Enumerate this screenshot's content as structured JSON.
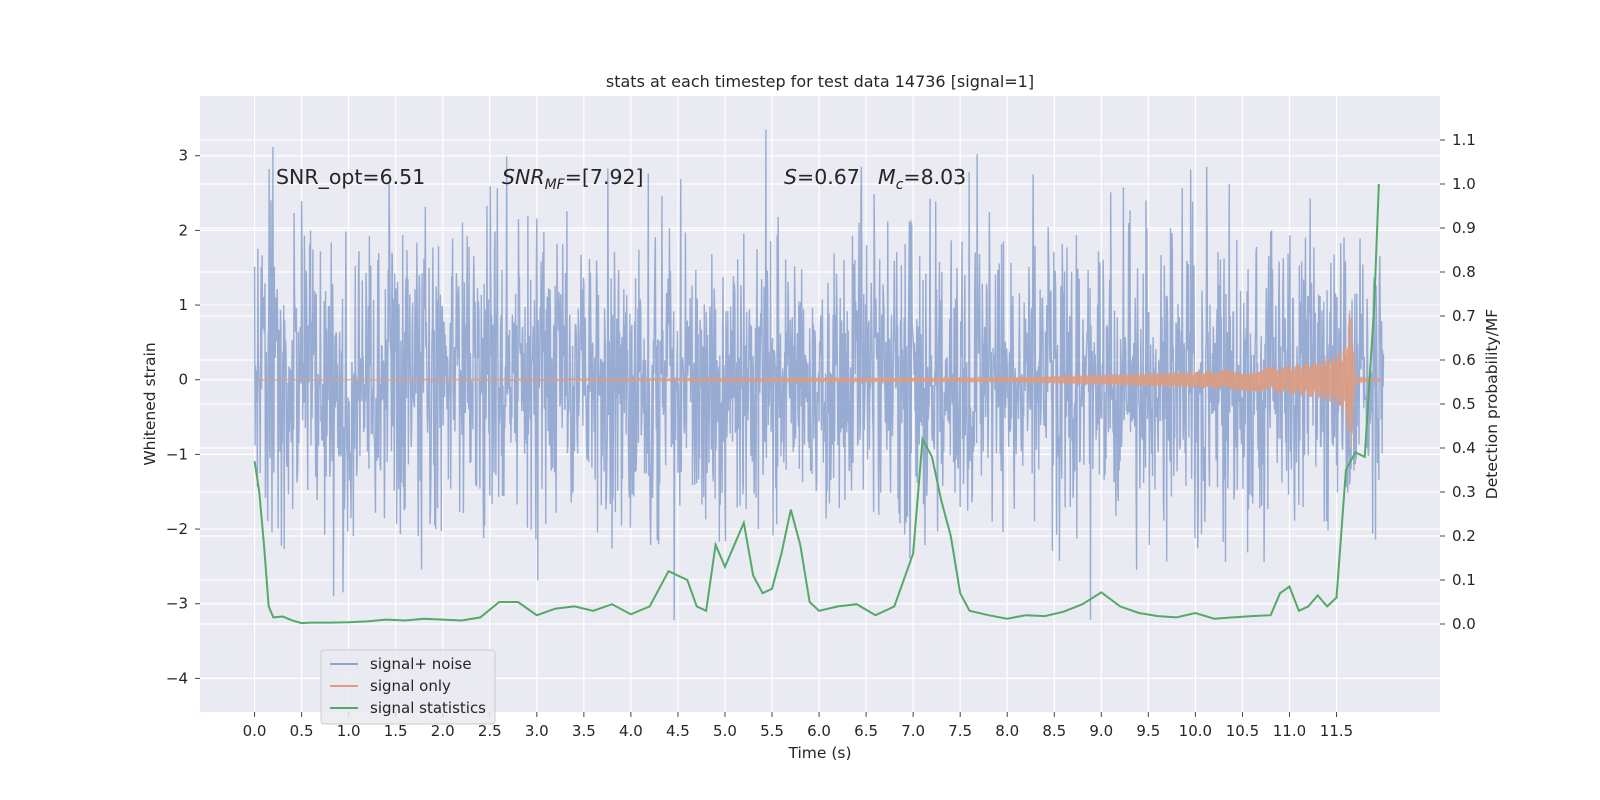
{
  "chart_data": {
    "type": "line",
    "title": "stats at each timestep for test data 14736 [signal=1]",
    "xlabel": "Time (s)",
    "ylabel": "Whitened strain",
    "ylabel_right": "Detection probability/MF",
    "xlim": [
      -0.58,
      12.6
    ],
    "ylim": [
      -4.45,
      3.8
    ],
    "ylim_right": [
      -0.2,
      1.2
    ],
    "x_ticks": [
      "0.0",
      "0.5",
      "1.0",
      "1.5",
      "2.0",
      "2.5",
      "3.0",
      "3.5",
      "4.0",
      "4.5",
      "5.0",
      "5.5",
      "6.0",
      "6.5",
      "7.0",
      "7.5",
      "8.0",
      "8.5",
      "9.0",
      "9.5",
      "10.0",
      "10.5",
      "11.0",
      "11.5"
    ],
    "y_ticks": [
      "3",
      "2",
      "1",
      "0",
      "−1",
      "−2",
      "−3",
      "−4"
    ],
    "y_right_ticks": [
      "1.1",
      "1.0",
      "0.9",
      "0.8",
      "0.7",
      "0.6",
      "0.5",
      "0.4",
      "0.3",
      "0.2",
      "0.1",
      "0.0"
    ],
    "grid": true,
    "legend_placement": "lower-left",
    "annotations": {
      "snr_opt": "SNR_opt=6.51",
      "snr_mf_sym": "SNR",
      "snr_mf_sub": "MF",
      "snr_mf_val": "=[7.92]",
      "s_sym": "S",
      "s_val": "=0.67",
      "mc_sym": "M",
      "mc_sub": "c",
      "mc_val": "=8.03"
    },
    "series": [
      {
        "name": "signal+ noise",
        "color": "#8fa5cf",
        "axis": "left",
        "description_only": true
      },
      {
        "name": "signal only",
        "color": "#dd9b80",
        "axis": "left",
        "x": [
          0.0,
          8.0,
          9.0,
          10.0,
          10.5,
          11.0,
          11.3,
          11.5,
          11.6,
          11.65,
          11.7,
          12.0
        ],
        "envelope": [
          0.0,
          0.03,
          0.07,
          0.11,
          0.14,
          0.19,
          0.25,
          0.33,
          0.47,
          1.05,
          0.05,
          0.0
        ]
      },
      {
        "name": "signal statistics",
        "color": "#55a868",
        "axis": "right",
        "x": [
          0.0,
          0.05,
          0.1,
          0.15,
          0.2,
          0.3,
          0.4,
          0.5,
          0.6,
          0.8,
          1.0,
          1.2,
          1.4,
          1.6,
          1.8,
          2.0,
          2.2,
          2.4,
          2.6,
          2.8,
          3.0,
          3.2,
          3.4,
          3.6,
          3.8,
          4.0,
          4.2,
          4.4,
          4.6,
          4.7,
          4.8,
          4.9,
          5.0,
          5.1,
          5.2,
          5.3,
          5.4,
          5.5,
          5.6,
          5.7,
          5.8,
          5.9,
          6.0,
          6.2,
          6.4,
          6.6,
          6.8,
          7.0,
          7.1,
          7.2,
          7.3,
          7.4,
          7.5,
          7.6,
          7.8,
          8.0,
          8.2,
          8.4,
          8.6,
          8.8,
          9.0,
          9.2,
          9.4,
          9.6,
          9.8,
          10.0,
          10.2,
          10.4,
          10.6,
          10.8,
          10.9,
          11.0,
          11.1,
          11.2,
          11.3,
          11.4,
          11.5,
          11.6,
          11.7,
          11.8,
          11.9,
          11.95
        ],
        "values": [
          0.37,
          0.3,
          0.18,
          0.04,
          0.015,
          0.017,
          0.008,
          0.002,
          0.003,
          0.003,
          0.004,
          0.006,
          0.01,
          0.008,
          0.012,
          0.01,
          0.008,
          0.015,
          0.05,
          0.05,
          0.02,
          0.035,
          0.04,
          0.03,
          0.045,
          0.022,
          0.04,
          0.12,
          0.1,
          0.04,
          0.03,
          0.18,
          0.13,
          0.18,
          0.23,
          0.11,
          0.07,
          0.08,
          0.16,
          0.26,
          0.18,
          0.05,
          0.03,
          0.04,
          0.045,
          0.02,
          0.04,
          0.16,
          0.42,
          0.38,
          0.28,
          0.2,
          0.07,
          0.03,
          0.02,
          0.012,
          0.02,
          0.018,
          0.028,
          0.045,
          0.072,
          0.04,
          0.025,
          0.018,
          0.015,
          0.025,
          0.012,
          0.015,
          0.018,
          0.02,
          0.07,
          0.085,
          0.03,
          0.04,
          0.065,
          0.04,
          0.06,
          0.35,
          0.39,
          0.38,
          0.72,
          1.0
        ]
      }
    ]
  },
  "legend": {
    "items": [
      {
        "label": "signal+ noise",
        "color": "#8fa5cf"
      },
      {
        "label": "signal only",
        "color": "#dd9b80"
      },
      {
        "label": "signal statistics",
        "color": "#55a868"
      }
    ]
  }
}
